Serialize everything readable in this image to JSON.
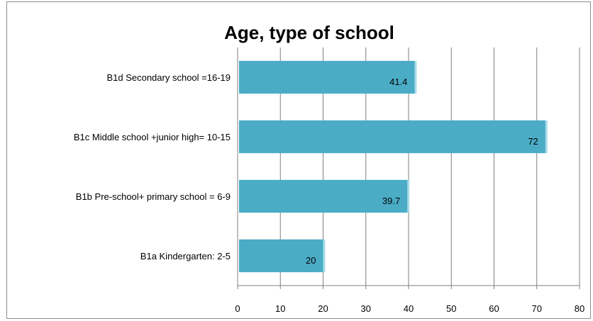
{
  "chart_data": {
    "type": "bar",
    "orientation": "horizontal",
    "title": "Age, type of school",
    "categories": [
      "B1d Secondary school =16-19",
      "B1c Middle school +junior high= 10-15",
      "B1b Pre-school+ primary school = 6-9",
      "B1a Kindergarten: 2-5"
    ],
    "values": [
      41.4,
      72,
      39.7,
      20
    ],
    "data_labels": [
      "41.4",
      "72",
      "39.7",
      "20"
    ],
    "xlim": [
      0,
      80
    ],
    "x_ticks": [
      "0",
      "10",
      "20",
      "30",
      "40",
      "50",
      "60",
      "70",
      "80"
    ],
    "x_tick_values": [
      0,
      10,
      20,
      30,
      40,
      50,
      60,
      70,
      80
    ],
    "grid": "vertical",
    "legend": "none",
    "colors": {
      "bar": "#4bacc6",
      "bar_highlight": "#a9dce9",
      "grid": "#7f7f7f",
      "frame": "#8c8c8c"
    }
  }
}
